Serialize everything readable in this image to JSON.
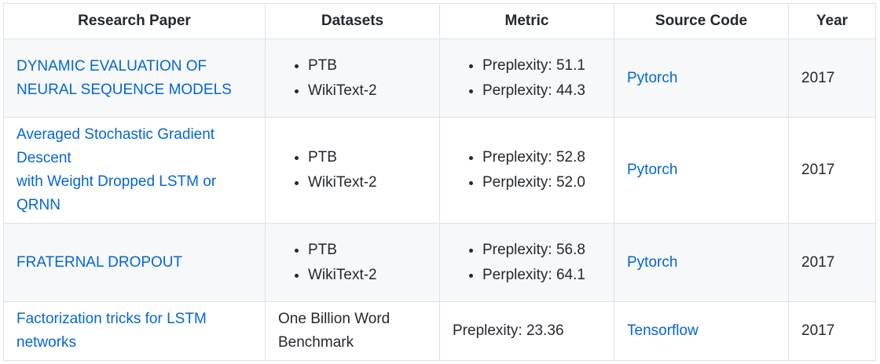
{
  "table": {
    "headers": [
      "Research Paper",
      "Datasets",
      "Metric",
      "Source Code",
      "Year"
    ],
    "rows": [
      {
        "paper": "DYNAMIC EVALUATION OF NEURAL SEQUENCE MODELS",
        "datasets": [
          "PTB",
          "WikiText-2"
        ],
        "metrics": [
          "Preplexity: 51.1",
          "Perplexity: 44.3"
        ],
        "code": "Pytorch",
        "year": "2017"
      },
      {
        "paper_lines": [
          "Averaged Stochastic Gradient Descent",
          "with Weight Dropped LSTM or QRNN"
        ],
        "datasets": [
          "PTB",
          "WikiText-2"
        ],
        "metrics": [
          "Preplexity: 52.8",
          "Perplexity: 52.0"
        ],
        "code": "Pytorch",
        "year": "2017"
      },
      {
        "paper": "FRATERNAL DROPOUT",
        "datasets": [
          "PTB",
          "WikiText-2"
        ],
        "metrics": [
          "Preplexity: 56.8",
          "Perplexity: 64.1"
        ],
        "code": "Pytorch",
        "year": "2017"
      },
      {
        "paper": "Factorization tricks for LSTM networks",
        "dataset_text": "One Billion Word Benchmark",
        "metric_text": "Preplexity: 23.36",
        "code": "Tensorflow",
        "year": "2017"
      }
    ]
  }
}
